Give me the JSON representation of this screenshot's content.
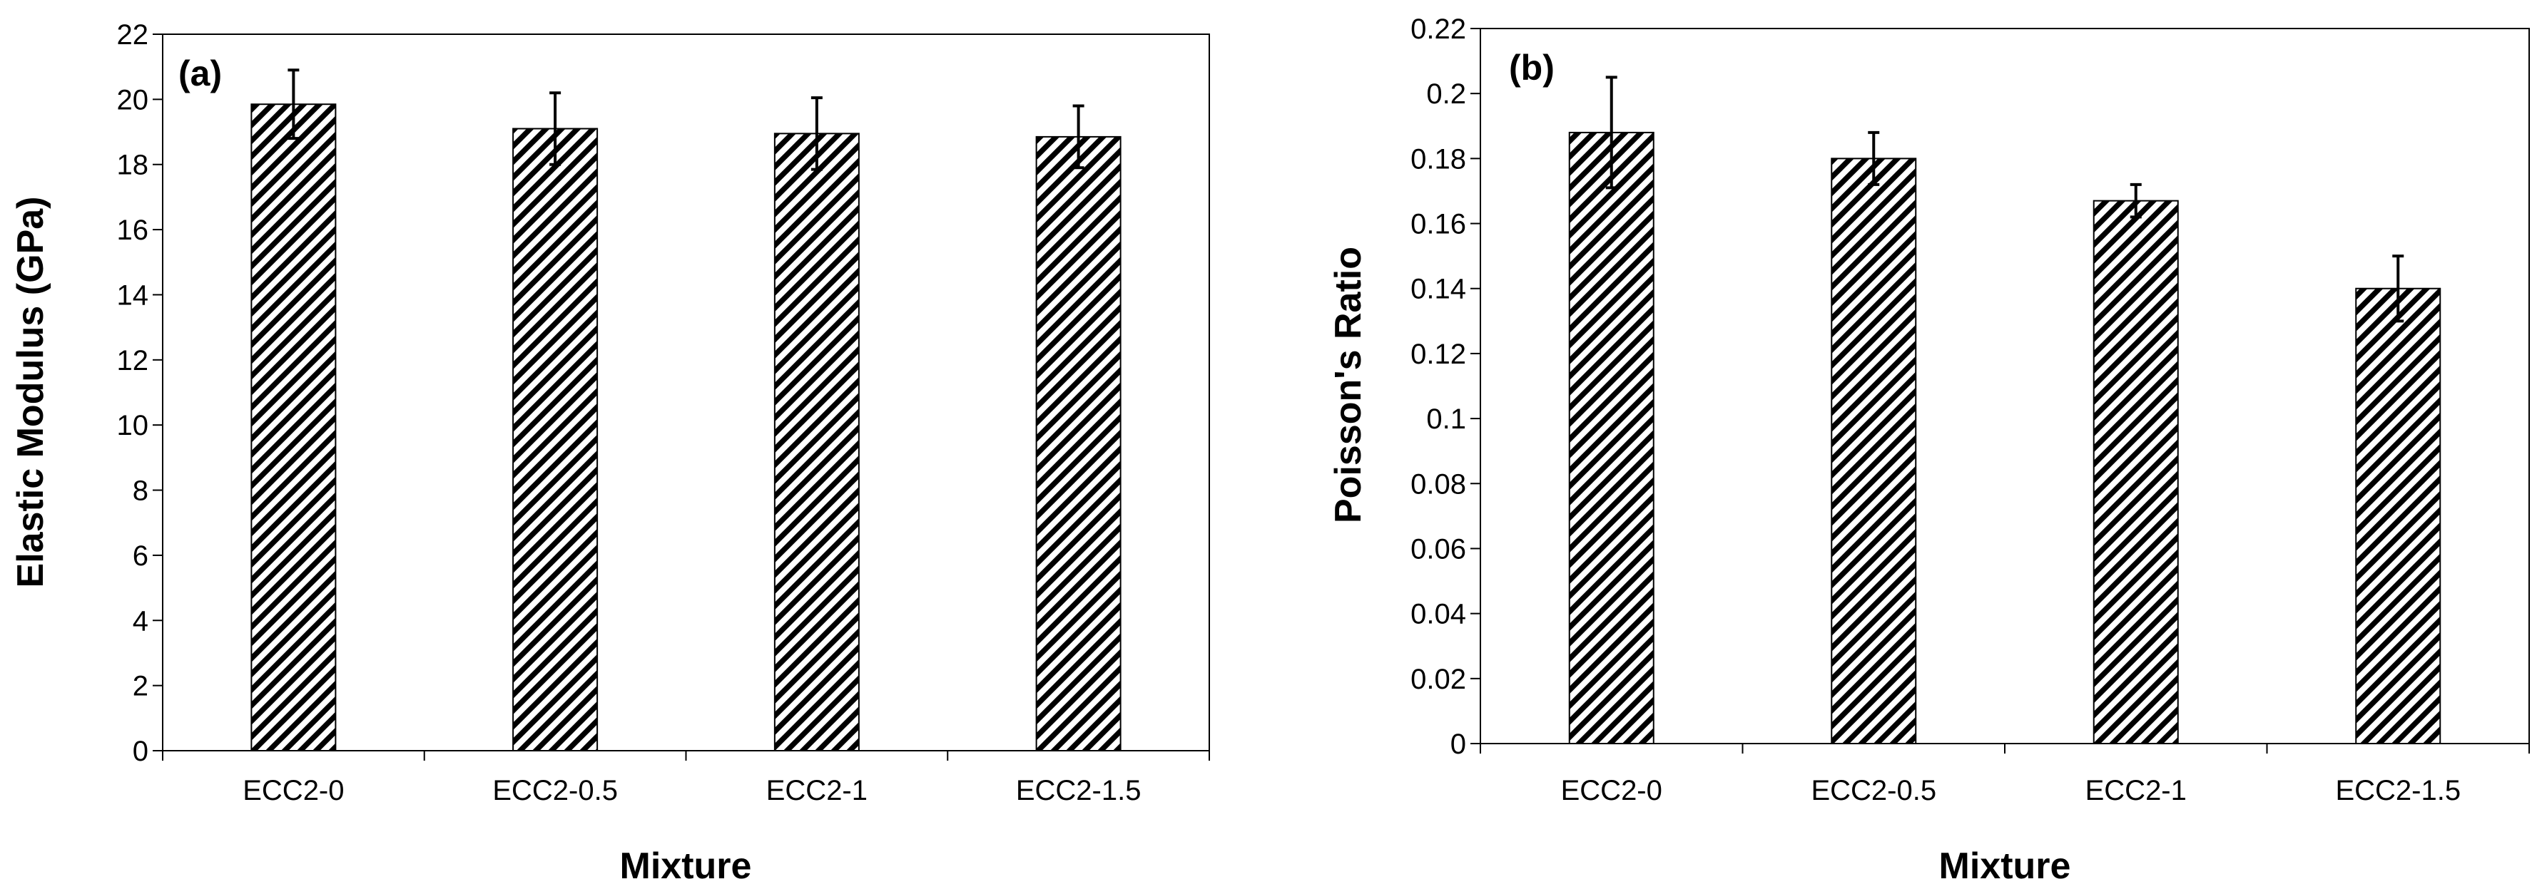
{
  "chart_data": [
    {
      "type": "bar",
      "panel_label": "(a)",
      "title": "",
      "xlabel": "Mixture",
      "ylabel": "Elastic Modulus (GPa)",
      "categories": [
        "ECC2-0",
        "ECC2-0.5",
        "ECC2-1",
        "ECC2-1.5"
      ],
      "values": [
        19.85,
        19.1,
        18.95,
        18.85
      ],
      "errors": [
        1.05,
        1.1,
        1.1,
        0.95
      ],
      "ylim": [
        0,
        22
      ],
      "yticks": [
        0,
        2,
        4,
        6,
        8,
        10,
        12,
        14,
        16,
        18,
        20,
        22
      ],
      "ytick_labels": [
        "0",
        "2",
        "4",
        "6",
        "8",
        "10",
        "12",
        "14",
        "16",
        "18",
        "20",
        "22"
      ],
      "grid": false,
      "fill": "diagonal-hatch"
    },
    {
      "type": "bar",
      "panel_label": "(b)",
      "title": "",
      "xlabel": "Mixture",
      "ylabel": "Poisson's Ratio",
      "categories": [
        "ECC2-0",
        "ECC2-0.5",
        "ECC2-1",
        "ECC2-1.5"
      ],
      "values": [
        0.188,
        0.18,
        0.167,
        0.14
      ],
      "errors": [
        0.017,
        0.008,
        0.005,
        0.01
      ],
      "ylim": [
        0,
        0.22
      ],
      "yticks": [
        0,
        0.02,
        0.04,
        0.06,
        0.08,
        0.1,
        0.12,
        0.14,
        0.16,
        0.18,
        0.2,
        0.22
      ],
      "ytick_labels": [
        "0",
        "0.02",
        "0.04",
        "0.06",
        "0.08",
        "0.1",
        "0.12",
        "0.14",
        "0.16",
        "0.18",
        "0.2",
        "0.22"
      ],
      "grid": false,
      "fill": "diagonal-hatch"
    }
  ],
  "colors": {
    "bar_stroke": "#000000",
    "hatch": "#000000",
    "background": "#ffffff"
  }
}
